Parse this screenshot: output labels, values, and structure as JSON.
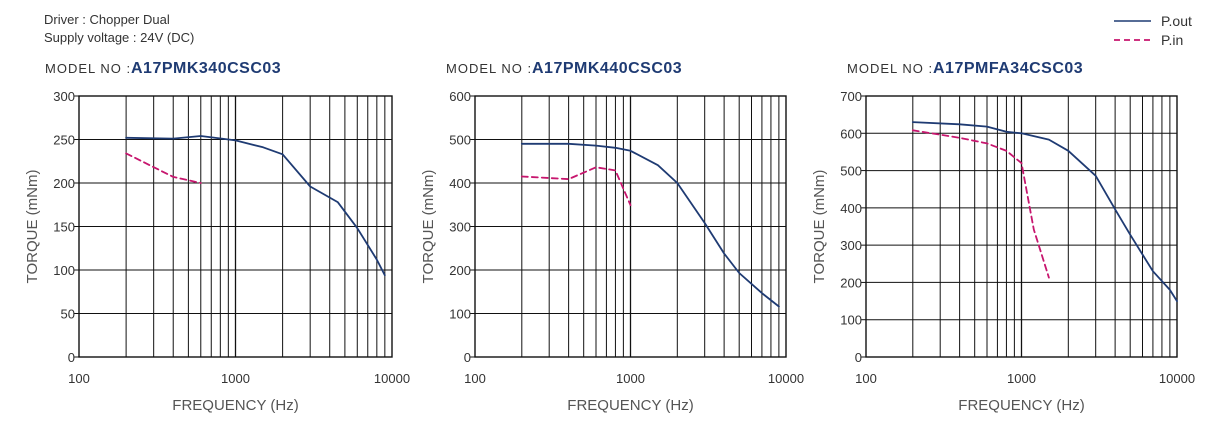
{
  "header": {
    "driver": "Driver : Chopper Dual",
    "supply": "Supply voltage : 24V (DC)"
  },
  "legend": {
    "items": [
      {
        "label": "P.out",
        "color": "#1f3b73",
        "style": "solid"
      },
      {
        "label": "P.in",
        "color": "#c7166e",
        "style": "dashed"
      }
    ]
  },
  "model_prefix": "MODEL NO :",
  "colors": {
    "pout": "#1f3b73",
    "pin": "#c7166e"
  },
  "chart_data": [
    {
      "type": "line",
      "model": "A17PMK340CSC03",
      "xlabel": "FREQUENCY (Hz)",
      "ylabel": "TORQUE (mNm)",
      "xscale": "log",
      "xlim": [
        100,
        10000
      ],
      "xticks": [
        "100",
        "1000",
        "10000"
      ],
      "ylim": [
        0,
        300
      ],
      "yticks": [
        "0",
        "50",
        "100",
        "150",
        "200",
        "250",
        "300"
      ],
      "grid": true,
      "series": [
        {
          "name": "P.out",
          "x": [
            200,
            400,
            600,
            1000,
            1500,
            2000,
            3000,
            4500,
            6000,
            8000,
            9000
          ],
          "y": [
            252,
            251,
            254,
            249,
            241,
            233,
            196,
            178,
            148,
            112,
            94
          ]
        },
        {
          "name": "P.in",
          "x": [
            200,
            400,
            600
          ],
          "y": [
            234,
            207,
            200
          ]
        }
      ]
    },
    {
      "type": "line",
      "model": "A17PMK440CSC03",
      "xlabel": "FREQUENCY (Hz)",
      "ylabel": "TORQUE (mNm)",
      "xscale": "log",
      "xlim": [
        100,
        10000
      ],
      "xticks": [
        "100",
        "1000",
        "10000"
      ],
      "ylim": [
        0,
        600
      ],
      "yticks": [
        "0",
        "100",
        "200",
        "300",
        "400",
        "500",
        "600"
      ],
      "grid": true,
      "series": [
        {
          "name": "P.out",
          "x": [
            200,
            400,
            600,
            800,
            1000,
            1500,
            2000,
            3000,
            4000,
            5000,
            7000,
            9000
          ],
          "y": [
            490,
            490,
            486,
            481,
            474,
            441,
            400,
            308,
            238,
            193,
            147,
            116
          ]
        },
        {
          "name": "P.in",
          "x": [
            200,
            400,
            600,
            800,
            1000
          ],
          "y": [
            415,
            409,
            436,
            429,
            349
          ]
        }
      ]
    },
    {
      "type": "line",
      "model": "A17PMFA34CSC03",
      "xlabel": "FREQUENCY (Hz)",
      "ylabel": "TORQUE (mNm)",
      "xscale": "log",
      "xlim": [
        100,
        10000
      ],
      "xticks": [
        "100",
        "1000",
        "10000"
      ],
      "ylim": [
        0,
        700
      ],
      "yticks": [
        "0",
        "100",
        "200",
        "300",
        "400",
        "500",
        "600",
        "700"
      ],
      "grid": true,
      "series": [
        {
          "name": "P.out",
          "x": [
            200,
            400,
            600,
            800,
            1000,
            1500,
            2000,
            3000,
            4000,
            5000,
            7000,
            9000,
            10000
          ],
          "y": [
            630,
            624,
            618,
            604,
            600,
            583,
            553,
            486,
            396,
            328,
            230,
            180,
            150
          ]
        },
        {
          "name": "P.in",
          "x": [
            200,
            400,
            600,
            800,
            1000,
            1200,
            1500
          ],
          "y": [
            608,
            588,
            573,
            553,
            520,
            342,
            213
          ]
        }
      ]
    }
  ]
}
